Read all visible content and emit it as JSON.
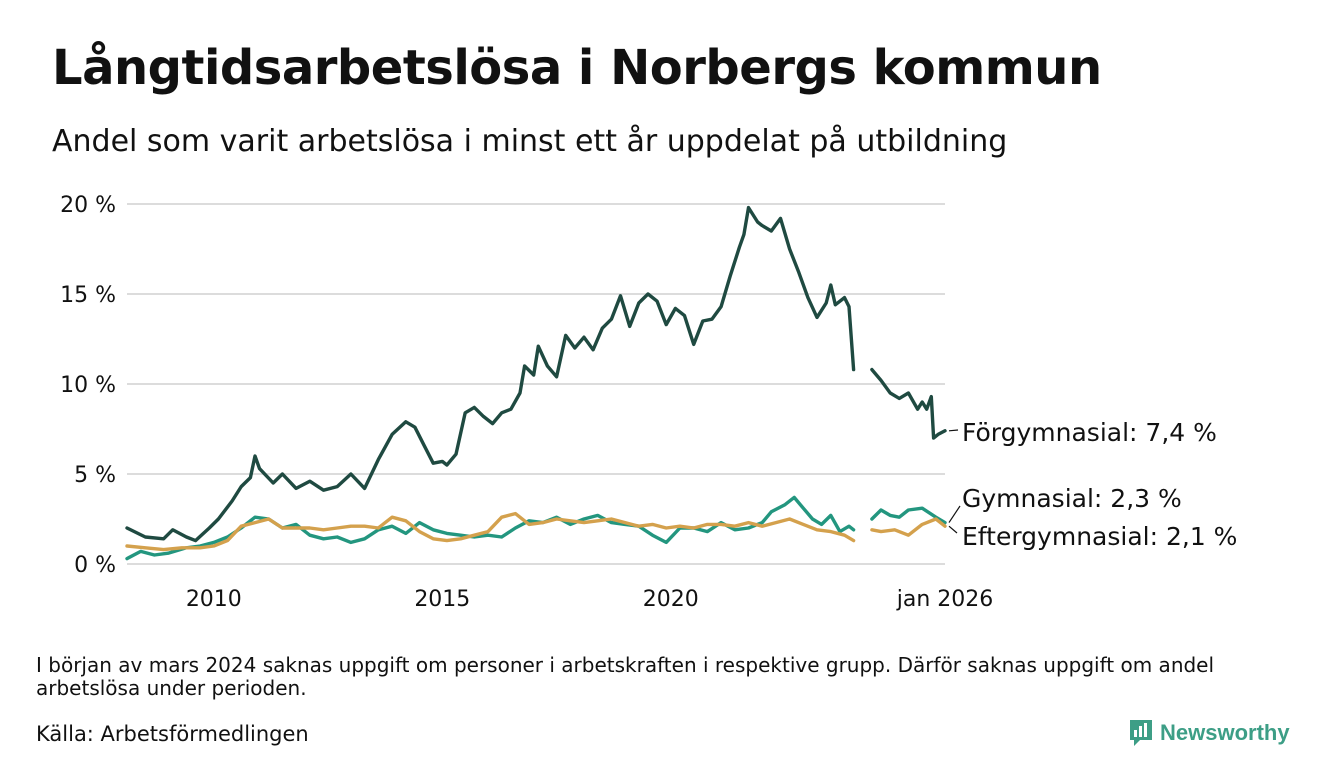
{
  "header": {
    "title": "Långtidsarbetslösa i Norbergs kommun",
    "subtitle": "Andel som varit arbetslösa i minst ett år uppdelat på utbildning"
  },
  "chart_data": {
    "type": "line",
    "title": "Långtidsarbetslösa i Norbergs kommun",
    "subtitle": "Andel som varit arbetslösa i minst ett år uppdelat på utbildning",
    "xlabel": "",
    "ylabel": "",
    "x_range": [
      2008.1,
      2026.0
    ],
    "ylim": [
      0,
      20
    ],
    "grid": true,
    "y_ticks": [
      {
        "value": 0,
        "label": "0 %"
      },
      {
        "value": 5,
        "label": "5 %"
      },
      {
        "value": 10,
        "label": "10 %"
      },
      {
        "value": 15,
        "label": "15 %"
      },
      {
        "value": 20,
        "label": "20 %"
      }
    ],
    "x_ticks": [
      {
        "value": 2010,
        "label": "2010"
      },
      {
        "value": 2015,
        "label": "2015"
      },
      {
        "value": 2020,
        "label": "2020"
      },
      {
        "value": 2026,
        "label": "jan 2026"
      }
    ],
    "gap": [
      2024.0,
      2024.4
    ],
    "series": [
      {
        "name": "Förgymnasial",
        "color": "#1f4a41",
        "end_label": "Förgymnasial: 7,4 %",
        "points": [
          [
            2008.1,
            2.0
          ],
          [
            2008.5,
            1.5
          ],
          [
            2008.9,
            1.4
          ],
          [
            2009.1,
            1.9
          ],
          [
            2009.4,
            1.5
          ],
          [
            2009.6,
            1.3
          ],
          [
            2009.9,
            2.0
          ],
          [
            2010.1,
            2.5
          ],
          [
            2010.4,
            3.5
          ],
          [
            2010.6,
            4.3
          ],
          [
            2010.8,
            4.8
          ],
          [
            2010.9,
            6.0
          ],
          [
            2011.0,
            5.3
          ],
          [
            2011.3,
            4.5
          ],
          [
            2011.5,
            5.0
          ],
          [
            2011.8,
            4.2
          ],
          [
            2012.1,
            4.6
          ],
          [
            2012.4,
            4.1
          ],
          [
            2012.7,
            4.3
          ],
          [
            2013.0,
            5.0
          ],
          [
            2013.3,
            4.2
          ],
          [
            2013.6,
            5.8
          ],
          [
            2013.9,
            7.2
          ],
          [
            2014.2,
            7.9
          ],
          [
            2014.4,
            7.6
          ],
          [
            2014.6,
            6.6
          ],
          [
            2014.8,
            5.6
          ],
          [
            2015.0,
            5.7
          ],
          [
            2015.1,
            5.5
          ],
          [
            2015.3,
            6.1
          ],
          [
            2015.5,
            8.4
          ],
          [
            2015.7,
            8.7
          ],
          [
            2015.9,
            8.2
          ],
          [
            2016.1,
            7.8
          ],
          [
            2016.3,
            8.4
          ],
          [
            2016.5,
            8.6
          ],
          [
            2016.7,
            9.5
          ],
          [
            2016.8,
            11.0
          ],
          [
            2017.0,
            10.5
          ],
          [
            2017.1,
            12.1
          ],
          [
            2017.3,
            11.0
          ],
          [
            2017.5,
            10.4
          ],
          [
            2017.7,
            12.7
          ],
          [
            2017.9,
            12.0
          ],
          [
            2018.1,
            12.6
          ],
          [
            2018.3,
            11.9
          ],
          [
            2018.5,
            13.1
          ],
          [
            2018.7,
            13.6
          ],
          [
            2018.9,
            14.9
          ],
          [
            2019.1,
            13.2
          ],
          [
            2019.3,
            14.5
          ],
          [
            2019.5,
            15.0
          ],
          [
            2019.7,
            14.6
          ],
          [
            2019.9,
            13.3
          ],
          [
            2020.1,
            14.2
          ],
          [
            2020.3,
            13.8
          ],
          [
            2020.5,
            12.2
          ],
          [
            2020.7,
            13.5
          ],
          [
            2020.9,
            13.6
          ],
          [
            2021.1,
            14.3
          ],
          [
            2021.3,
            16.0
          ],
          [
            2021.5,
            17.6
          ],
          [
            2021.6,
            18.3
          ],
          [
            2021.7,
            19.8
          ],
          [
            2021.9,
            19.0
          ],
          [
            2022.0,
            18.8
          ],
          [
            2022.2,
            18.5
          ],
          [
            2022.4,
            19.2
          ],
          [
            2022.6,
            17.5
          ],
          [
            2022.8,
            16.2
          ],
          [
            2023.0,
            14.8
          ],
          [
            2023.2,
            13.7
          ],
          [
            2023.4,
            14.5
          ],
          [
            2023.5,
            15.5
          ],
          [
            2023.6,
            14.4
          ],
          [
            2023.8,
            14.8
          ],
          [
            2023.9,
            14.3
          ],
          [
            2024.0,
            10.8
          ],
          [
            2024.4,
            10.8
          ],
          [
            2024.6,
            10.2
          ],
          [
            2024.8,
            9.5
          ],
          [
            2025.0,
            9.2
          ],
          [
            2025.2,
            9.5
          ],
          [
            2025.4,
            8.6
          ],
          [
            2025.5,
            9.0
          ],
          [
            2025.6,
            8.6
          ],
          [
            2025.7,
            9.3
          ],
          [
            2025.75,
            7.0
          ],
          [
            2025.85,
            7.2
          ],
          [
            2026.0,
            7.4
          ]
        ]
      },
      {
        "name": "Gymnasial",
        "color": "#23967f",
        "end_label": "Gymnasial: 2,3 %",
        "points": [
          [
            2008.1,
            0.3
          ],
          [
            2008.4,
            0.7
          ],
          [
            2008.7,
            0.5
          ],
          [
            2009.0,
            0.6
          ],
          [
            2009.4,
            0.9
          ],
          [
            2009.7,
            1.0
          ],
          [
            2010.0,
            1.2
          ],
          [
            2010.3,
            1.5
          ],
          [
            2010.6,
            2.0
          ],
          [
            2010.9,
            2.6
          ],
          [
            2011.2,
            2.5
          ],
          [
            2011.5,
            2.0
          ],
          [
            2011.8,
            2.2
          ],
          [
            2012.1,
            1.6
          ],
          [
            2012.4,
            1.4
          ],
          [
            2012.7,
            1.5
          ],
          [
            2013.0,
            1.2
          ],
          [
            2013.3,
            1.4
          ],
          [
            2013.6,
            1.9
          ],
          [
            2013.9,
            2.1
          ],
          [
            2014.2,
            1.7
          ],
          [
            2014.5,
            2.3
          ],
          [
            2014.8,
            1.9
          ],
          [
            2015.1,
            1.7
          ],
          [
            2015.4,
            1.6
          ],
          [
            2015.7,
            1.5
          ],
          [
            2016.0,
            1.6
          ],
          [
            2016.3,
            1.5
          ],
          [
            2016.6,
            2.0
          ],
          [
            2016.9,
            2.4
          ],
          [
            2017.2,
            2.3
          ],
          [
            2017.5,
            2.6
          ],
          [
            2017.8,
            2.2
          ],
          [
            2018.1,
            2.5
          ],
          [
            2018.4,
            2.7
          ],
          [
            2018.7,
            2.3
          ],
          [
            2019.0,
            2.2
          ],
          [
            2019.3,
            2.1
          ],
          [
            2019.6,
            1.6
          ],
          [
            2019.9,
            1.2
          ],
          [
            2020.2,
            2.0
          ],
          [
            2020.5,
            2.0
          ],
          [
            2020.8,
            1.8
          ],
          [
            2021.1,
            2.3
          ],
          [
            2021.4,
            1.9
          ],
          [
            2021.7,
            2.0
          ],
          [
            2022.0,
            2.3
          ],
          [
            2022.2,
            2.9
          ],
          [
            2022.5,
            3.3
          ],
          [
            2022.7,
            3.7
          ],
          [
            2022.9,
            3.1
          ],
          [
            2023.1,
            2.5
          ],
          [
            2023.3,
            2.2
          ],
          [
            2023.5,
            2.7
          ],
          [
            2023.7,
            1.8
          ],
          [
            2023.9,
            2.1
          ],
          [
            2024.0,
            1.9
          ],
          [
            2024.4,
            2.5
          ],
          [
            2024.6,
            3.0
          ],
          [
            2024.8,
            2.7
          ],
          [
            2025.0,
            2.6
          ],
          [
            2025.2,
            3.0
          ],
          [
            2025.5,
            3.1
          ],
          [
            2025.8,
            2.6
          ],
          [
            2026.0,
            2.3
          ]
        ]
      },
      {
        "name": "Eftergymnasial",
        "color": "#d4a14d",
        "end_label": "Eftergymnasial: 2,1 %",
        "points": [
          [
            2008.1,
            1.0
          ],
          [
            2008.5,
            0.9
          ],
          [
            2008.9,
            0.8
          ],
          [
            2009.3,
            0.9
          ],
          [
            2009.7,
            0.9
          ],
          [
            2010.0,
            1.0
          ],
          [
            2010.3,
            1.3
          ],
          [
            2010.6,
            2.1
          ],
          [
            2010.9,
            2.3
          ],
          [
            2011.2,
            2.5
          ],
          [
            2011.5,
            2.0
          ],
          [
            2011.8,
            2.0
          ],
          [
            2012.1,
            2.0
          ],
          [
            2012.4,
            1.9
          ],
          [
            2012.7,
            2.0
          ],
          [
            2013.0,
            2.1
          ],
          [
            2013.3,
            2.1
          ],
          [
            2013.6,
            2.0
          ],
          [
            2013.9,
            2.6
          ],
          [
            2014.2,
            2.4
          ],
          [
            2014.5,
            1.8
          ],
          [
            2014.8,
            1.4
          ],
          [
            2015.1,
            1.3
          ],
          [
            2015.4,
            1.4
          ],
          [
            2015.7,
            1.6
          ],
          [
            2016.0,
            1.8
          ],
          [
            2016.3,
            2.6
          ],
          [
            2016.6,
            2.8
          ],
          [
            2016.9,
            2.2
          ],
          [
            2017.2,
            2.3
          ],
          [
            2017.5,
            2.5
          ],
          [
            2017.8,
            2.4
          ],
          [
            2018.1,
            2.3
          ],
          [
            2018.4,
            2.4
          ],
          [
            2018.7,
            2.5
          ],
          [
            2019.0,
            2.3
          ],
          [
            2019.3,
            2.1
          ],
          [
            2019.6,
            2.2
          ],
          [
            2019.9,
            2.0
          ],
          [
            2020.2,
            2.1
          ],
          [
            2020.5,
            2.0
          ],
          [
            2020.8,
            2.2
          ],
          [
            2021.1,
            2.2
          ],
          [
            2021.4,
            2.1
          ],
          [
            2021.7,
            2.3
          ],
          [
            2022.0,
            2.1
          ],
          [
            2022.3,
            2.3
          ],
          [
            2022.6,
            2.5
          ],
          [
            2022.9,
            2.2
          ],
          [
            2023.2,
            1.9
          ],
          [
            2023.5,
            1.8
          ],
          [
            2023.8,
            1.6
          ],
          [
            2024.0,
            1.3
          ],
          [
            2024.4,
            1.9
          ],
          [
            2024.6,
            1.8
          ],
          [
            2024.9,
            1.9
          ],
          [
            2025.2,
            1.6
          ],
          [
            2025.5,
            2.2
          ],
          [
            2025.8,
            2.5
          ],
          [
            2026.0,
            2.1
          ]
        ]
      }
    ]
  },
  "footer": {
    "note": "I början av mars 2024 saknas uppgift om personer i arbetskraften i respektive grupp. Därför saknas uppgift om andel arbetslösa under perioden.",
    "source": "Källa: Arbetsförmedlingen",
    "brand": "Newsworthy",
    "brand_color": "#3d9e86"
  }
}
